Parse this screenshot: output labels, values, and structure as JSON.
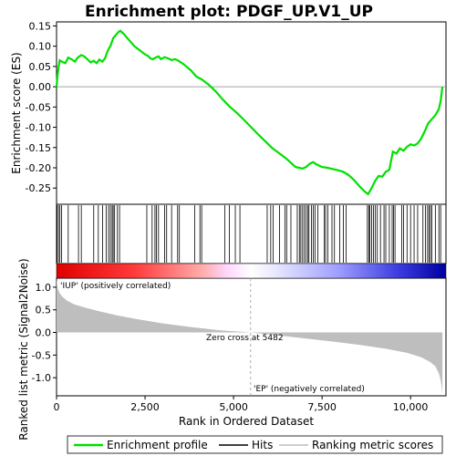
{
  "chart_data": {
    "type": "line",
    "title": "Enrichment plot: PDGF_UP.V1_UP",
    "xlabel": "Rank in Ordered Dataset",
    "ylabel_top": "Enrichment score (ES)",
    "ylabel_bottom": "Ranked list metric (Signal2Noise)",
    "x_range": [
      0,
      11000
    ],
    "x_ticks": [
      0,
      2500,
      5000,
      7500,
      10000
    ],
    "x_tick_labels": [
      "0",
      "2,500",
      "5,000",
      "7,500",
      "10,000"
    ],
    "es_range": [
      -0.29,
      0.16
    ],
    "es_ticks": [
      0.15,
      0.1,
      0.05,
      0.0,
      -0.05,
      -0.1,
      -0.15,
      -0.2,
      -0.25
    ],
    "es_tick_labels": [
      "0.15",
      "0.10",
      "0.05",
      "0.00",
      "-0.05",
      "-0.10",
      "-0.15",
      "-0.20",
      "-0.25"
    ],
    "metric_range": [
      -1.4,
      1.2
    ],
    "metric_ticks": [
      1.0,
      0.5,
      0.0,
      -0.5,
      -1.0
    ],
    "metric_tick_labels": [
      "1.0",
      "0.5",
      "0.0",
      "-0.5",
      "-1.0"
    ],
    "zero_cross": 5482,
    "zero_cross_label": "Zero cross at 5482",
    "pos_label": "'IUP' (positively correlated)",
    "neg_label": "'EP' (negatively correlated)",
    "n_genes": 10900,
    "series": [
      {
        "name": "Enrichment profile",
        "x": [
          0,
          30,
          60,
          90,
          150,
          250,
          330,
          420,
          520,
          600,
          700,
          780,
          870,
          960,
          1050,
          1130,
          1210,
          1290,
          1370,
          1430,
          1480,
          1520,
          1560,
          1600,
          1650,
          1700,
          1750,
          1800,
          1900,
          2000,
          2100,
          2200,
          2350,
          2500,
          2580,
          2650,
          2720,
          2800,
          2880,
          2950,
          3050,
          3150,
          3250,
          3350,
          3450,
          3600,
          3800,
          3950,
          4100,
          4300,
          4500,
          4700,
          4900,
          5100,
          5300,
          5500,
          5700,
          5900,
          6100,
          6300,
          6500,
          6650,
          6750,
          6850,
          6950,
          7050,
          7150,
          7250,
          7350,
          7500,
          7650,
          7800,
          7950,
          8100,
          8250,
          8400,
          8550,
          8700,
          8800,
          8900,
          9000,
          9100,
          9200,
          9300,
          9400,
          9500,
          9600,
          9700,
          9800,
          9900,
          10000,
          10100,
          10200,
          10300,
          10400,
          10500,
          10600,
          10700,
          10800,
          10850,
          10880,
          10900
        ],
        "y": [
          0.0,
          0.03,
          0.05,
          0.065,
          0.062,
          0.058,
          0.072,
          0.068,
          0.062,
          0.072,
          0.078,
          0.075,
          0.068,
          0.06,
          0.064,
          0.058,
          0.067,
          0.062,
          0.07,
          0.085,
          0.095,
          0.1,
          0.11,
          0.12,
          0.125,
          0.13,
          0.135,
          0.138,
          0.13,
          0.12,
          0.11,
          0.1,
          0.09,
          0.08,
          0.076,
          0.07,
          0.068,
          0.072,
          0.075,
          0.068,
          0.073,
          0.07,
          0.066,
          0.068,
          0.064,
          0.055,
          0.04,
          0.025,
          0.018,
          0.005,
          -0.012,
          -0.032,
          -0.05,
          -0.065,
          -0.082,
          -0.1,
          -0.118,
          -0.135,
          -0.152,
          -0.165,
          -0.178,
          -0.19,
          -0.198,
          -0.2,
          -0.202,
          -0.198,
          -0.19,
          -0.186,
          -0.192,
          -0.198,
          -0.2,
          -0.203,
          -0.206,
          -0.21,
          -0.218,
          -0.23,
          -0.245,
          -0.258,
          -0.265,
          -0.25,
          -0.232,
          -0.22,
          -0.222,
          -0.21,
          -0.205,
          -0.16,
          -0.165,
          -0.152,
          -0.158,
          -0.148,
          -0.142,
          -0.145,
          -0.14,
          -0.128,
          -0.11,
          -0.09,
          -0.08,
          -0.07,
          -0.055,
          -0.035,
          -0.015,
          0.0
        ]
      }
    ],
    "hits": [
      15,
      55,
      95,
      140,
      330,
      620,
      700,
      1050,
      1180,
      1300,
      1400,
      1470,
      1520,
      1570,
      1600,
      1640,
      1720,
      1780,
      2550,
      2700,
      2780,
      2820,
      2880,
      3050,
      3110,
      3250,
      3420,
      3470,
      3900,
      4050,
      4100,
      4750,
      4880,
      5050,
      5180,
      5950,
      6050,
      6120,
      6300,
      6450,
      6500,
      6620,
      6800,
      6860,
      6900,
      6950,
      7000,
      7050,
      7100,
      7130,
      7200,
      7250,
      7300,
      7380,
      7560,
      7600,
      7660,
      7780,
      7850,
      8000,
      8100,
      8180,
      8780,
      8820,
      8850,
      8900,
      8950,
      9000,
      9060,
      9150,
      9250,
      9300,
      9400,
      9480,
      9520,
      9560,
      9750,
      9800,
      9900,
      10000,
      10100,
      10200,
      10350,
      10420,
      10480,
      10520,
      10560,
      10600,
      10700,
      10800,
      10850
    ],
    "metric_curve": {
      "x": [
        0,
        30,
        80,
        150,
        300,
        500,
        800,
        1200,
        1700,
        2300,
        3000,
        3800,
        4600,
        5482,
        6200,
        7000,
        7800,
        8600,
        9300,
        9900,
        10300,
        10550,
        10700,
        10800,
        10850,
        10880,
        10900
      ],
      "y": [
        1.2,
        0.98,
        0.88,
        0.8,
        0.7,
        0.62,
        0.55,
        0.47,
        0.38,
        0.29,
        0.2,
        0.12,
        0.05,
        0.0,
        -0.06,
        -0.13,
        -0.2,
        -0.28,
        -0.36,
        -0.45,
        -0.55,
        -0.65,
        -0.75,
        -0.9,
        -1.05,
        -1.2,
        -1.35
      ]
    },
    "legend": [
      "Enrichment profile",
      "Hits",
      "Ranking metric scores"
    ],
    "legend_placement": "bottom",
    "colors": {
      "es_line": "#00e000",
      "hits": "#000000",
      "metric_fill": "#bebebe",
      "pos_label": "#cc0000",
      "neg_label": "#0000cc"
    }
  }
}
